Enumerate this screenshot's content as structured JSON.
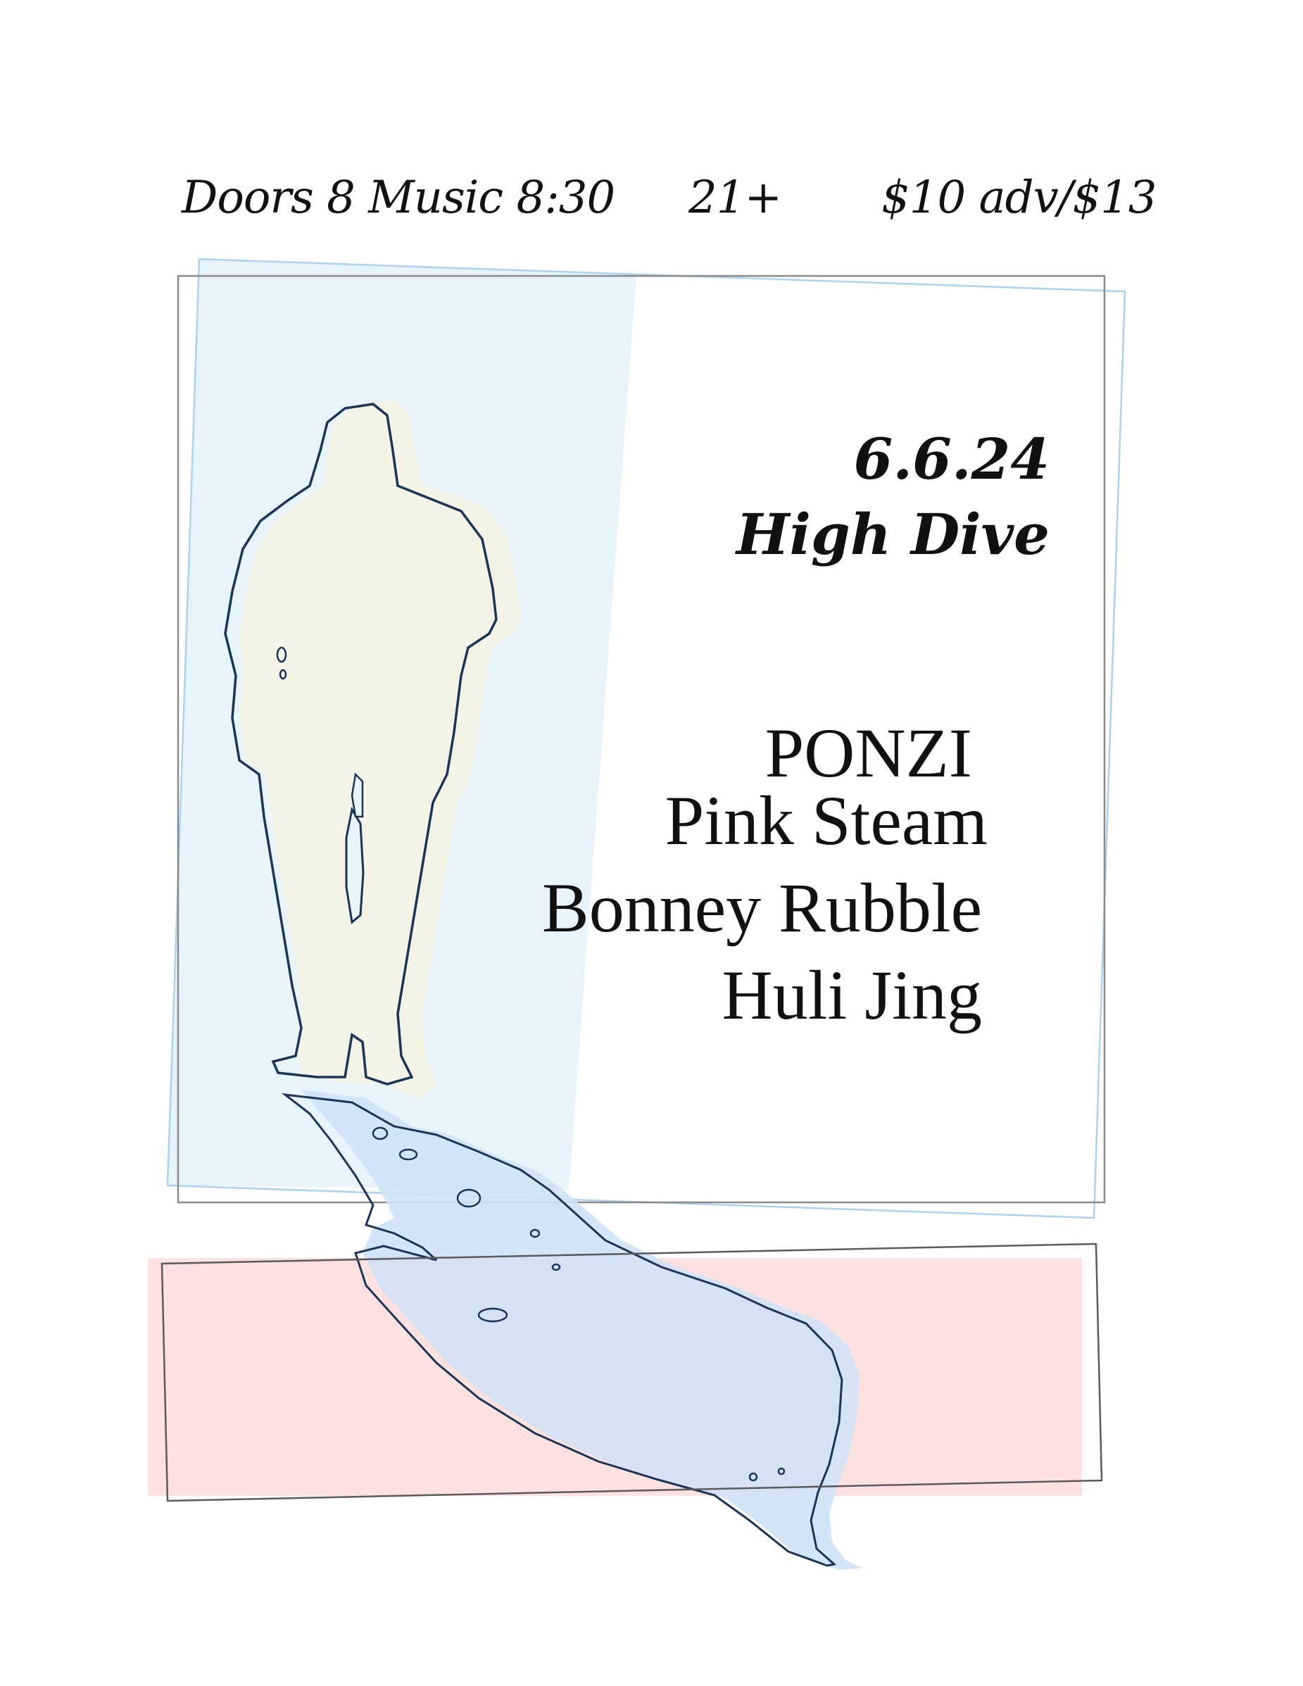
{
  "show_info": {
    "doors": "Doors 8  Music 8:30",
    "age": "21+",
    "price": "$10 adv/$13"
  },
  "event": {
    "date": "6.6.24",
    "venue": "High Dive"
  },
  "lineup": [
    "PONZI",
    "Pink Steam",
    "Bonney Rubble",
    "Huli Jing"
  ],
  "colors": {
    "background": "#ffffff",
    "blue_panel": "#e8f4fc",
    "blue_frame": "#a9d3f0",
    "pink_band": "#fde0e0",
    "figure_fill": "#f3f4e6",
    "shadow_fill": "#cfe2f6",
    "outline": "#1a3558",
    "text": "#111111"
  }
}
